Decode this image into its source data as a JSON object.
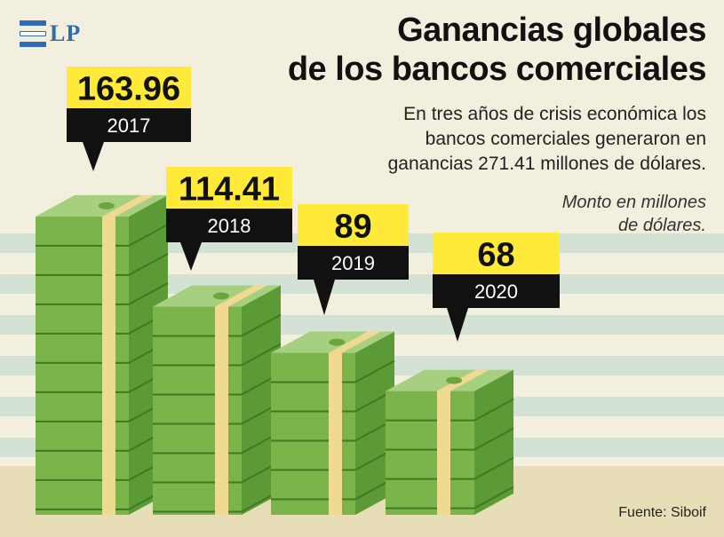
{
  "brand": {
    "logo_text": "LP",
    "color": "#2f6db3"
  },
  "header": {
    "title_line1": "Ganancias globales",
    "title_line2": "de los bancos comerciales",
    "subtitle_line1": "En tres años de crisis económica los",
    "subtitle_line2": "bancos comerciales generaron en",
    "subtitle_line3": "ganancias 271.41 millones de dólares.",
    "note_line1": "Monto en millones",
    "note_line2": "de dólares."
  },
  "footer": {
    "source": "Fuente: Siboif"
  },
  "colors": {
    "background": "#f3efdf",
    "stripe": "#d3e2d4",
    "ground": "#e7deb8",
    "bill_front": "#7ab44a",
    "bill_side": "#5b9a34",
    "bill_top": "#a6d080",
    "band": "#f0d990",
    "band_side": "#d6bd6a",
    "label_value_bg": "#ffea3a",
    "label_year_bg": "#111111"
  },
  "chart_data": {
    "type": "bar",
    "title": "Ganancias globales de los bancos comerciales",
    "ylabel": "Monto en millones de dólares",
    "categories": [
      "2017",
      "2018",
      "2019",
      "2020"
    ],
    "values": [
      163.96,
      114.41,
      89,
      68
    ],
    "value_labels": [
      "163.96",
      "114.41",
      "89",
      "68"
    ],
    "total": 271.41
  }
}
